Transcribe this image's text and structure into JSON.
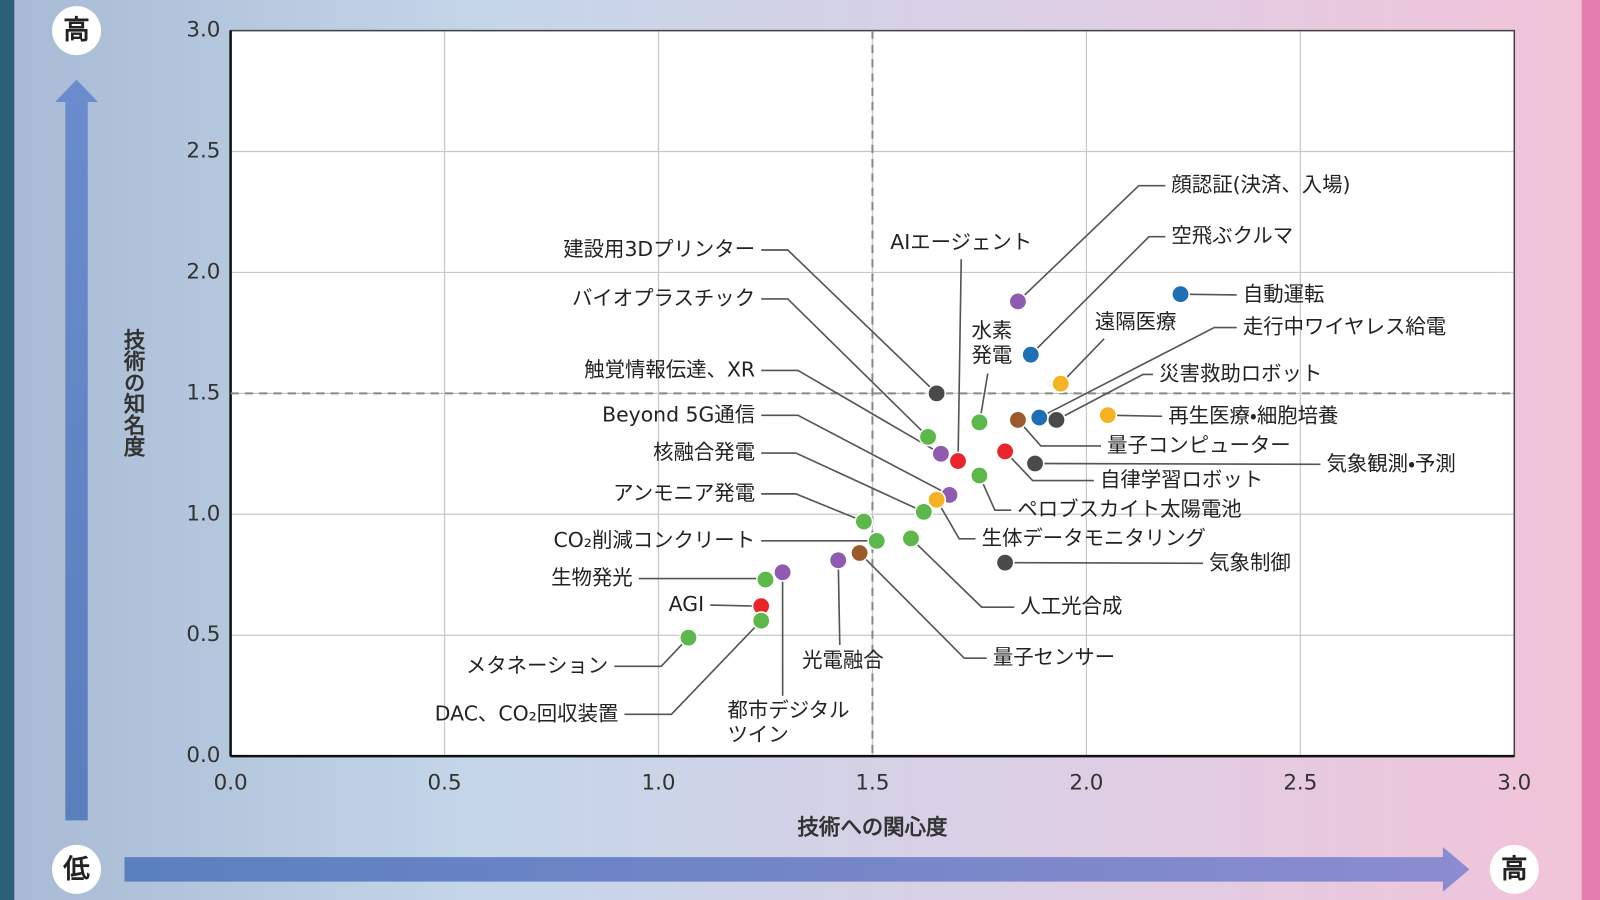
{
  "chart_data": {
    "type": "scatter",
    "x_label": "技術への関心度",
    "y_label": "技術の知名度",
    "markers": {
      "y_high": "高",
      "low": "低",
      "x_high": "高"
    },
    "xlim": [
      0,
      3
    ],
    "ylim": [
      0,
      3
    ],
    "xticks": [
      {
        "value": 0,
        "label": "0.0"
      },
      {
        "value": 0.5,
        "label": "0.5"
      },
      {
        "value": 1,
        "label": "1.0"
      },
      {
        "value": 1.5,
        "label": "1.5"
      },
      {
        "value": 2,
        "label": "2.0"
      },
      {
        "value": 2.5,
        "label": "2.5"
      },
      {
        "value": 3,
        "label": "3.0"
      }
    ],
    "yticks": [
      {
        "value": 0,
        "label": "0.0"
      },
      {
        "value": 0.5,
        "label": "0.5"
      },
      {
        "value": 1,
        "label": "1.0"
      },
      {
        "value": 1.5,
        "label": "1.5"
      },
      {
        "value": 2,
        "label": "2.0"
      },
      {
        "value": 2.5,
        "label": "2.5"
      },
      {
        "value": 3,
        "label": "3.0"
      }
    ],
    "grid": true,
    "ref_x": 1.5,
    "ref_y": 1.5,
    "labels": [
      "顔認証(決済、入場)",
      "空飛ぶクルマ",
      "自動運転",
      "遠隔医療",
      "走行中ワイヤレス給電",
      "災害救助ロボット",
      "再生医療・細胞培養",
      "量子コンピューター",
      "気象観測・予測",
      "自律学習ロボット",
      "水素\n発電",
      "AIエージェント",
      "建設用3Dプリンター",
      "バイオプラスチック",
      "触覚情報伝達、XR",
      "ペロブスカイト太陽電池",
      "Beyond 5G通信",
      "生体データモニタリング",
      "核融合発電",
      "アンモニア発電",
      "CO₂削減コンクリート",
      "人工光合成",
      "気象制御",
      "量子センサー",
      "光電融合",
      "都市デジタル\nツイン",
      "生物発光",
      "AGI",
      "DAC、CO₂回収装置",
      "メタネーション"
    ],
    "x": [
      1.84,
      1.87,
      2.22,
      1.94,
      1.89,
      1.93,
      2.05,
      1.84,
      1.88,
      1.81,
      1.75,
      1.7,
      1.65,
      1.63,
      1.66,
      1.75,
      1.68,
      1.65,
      1.62,
      1.48,
      1.51,
      1.59,
      1.81,
      1.47,
      1.42,
      1.29,
      1.25,
      1.24,
      1.24,
      1.07
    ],
    "y": [
      1.88,
      1.66,
      1.91,
      1.54,
      1.4,
      1.39,
      1.41,
      1.39,
      1.21,
      1.26,
      1.38,
      1.22,
      1.5,
      1.32,
      1.25,
      1.16,
      1.08,
      1.06,
      1.01,
      0.97,
      0.89,
      0.9,
      0.8,
      0.84,
      0.81,
      0.76,
      0.73,
      0.62,
      0.56,
      0.49
    ],
    "colors": [
      "#8e5bb0",
      "#1f6fb5",
      "#1f6fb5",
      "#f5b324",
      "#1f6fb5",
      "#4a4a4a",
      "#f5b324",
      "#9a5a2a",
      "#4a4a4a",
      "#e8262a",
      "#5cb84a",
      "#e8262a",
      "#4a4a4a",
      "#5cb84a",
      "#8e5bb0",
      "#5cb84a",
      "#8e5bb0",
      "#f5b324",
      "#5cb84a",
      "#5cb84a",
      "#5cb84a",
      "#5cb84a",
      "#4a4a4a",
      "#9a5a2a",
      "#8e5bb0",
      "#8e5bb0",
      "#5cb84a",
      "#e8262a",
      "#5cb84a",
      "#5cb84a"
    ]
  }
}
